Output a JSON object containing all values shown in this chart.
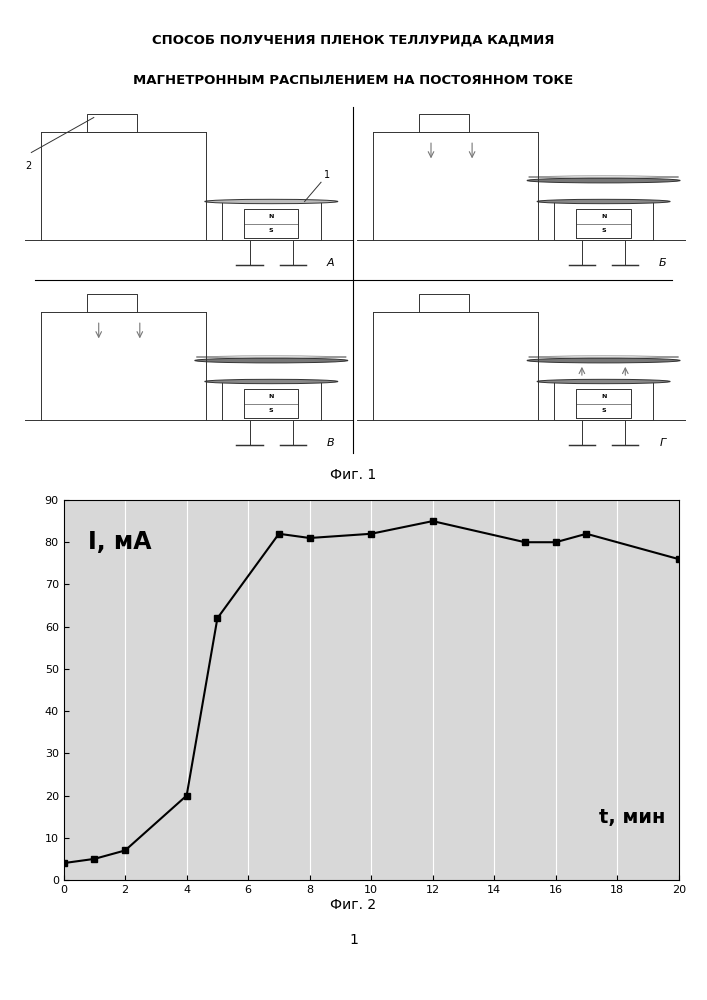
{
  "title_line1": "СПОСОБ ПОЛУЧЕНИЯ ПЛЕНОК ТЕЛЛУРИДА КАДМИЯ",
  "title_line2": "МАГНЕТРОННЫМ РАСПЫЛЕНИЕМ НА ПОСТОЯННОМ ТОКЕ",
  "fig1_caption": "Фиг. 1",
  "fig2_caption": "Фиг. 2",
  "page_number": "1",
  "graph_xlabel": "t, мин",
  "graph_ylabel": "I, мА",
  "graph_xlim": [
    0,
    20
  ],
  "graph_ylim": [
    0,
    90
  ],
  "graph_xticks": [
    0,
    2,
    4,
    6,
    8,
    10,
    12,
    14,
    16,
    18,
    20
  ],
  "graph_yticks": [
    0,
    10,
    20,
    30,
    40,
    50,
    60,
    70,
    80,
    90
  ],
  "graph_x": [
    0,
    1,
    2,
    4,
    5,
    7,
    8,
    10,
    12,
    15,
    16,
    17,
    20
  ],
  "graph_y": [
    4,
    5,
    7,
    20,
    62,
    82,
    81,
    82,
    85,
    80,
    80,
    82,
    76
  ],
  "bg_color": "#ffffff",
  "graph_bg": "#d8d8d8"
}
